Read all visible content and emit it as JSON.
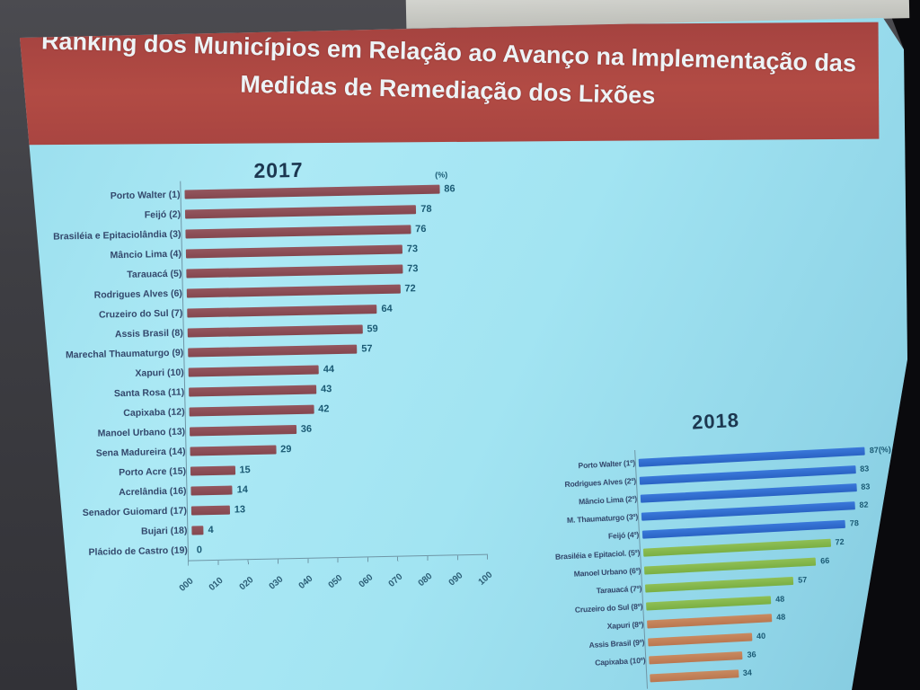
{
  "banner": {
    "title_line1": "Ranking dos Municípios em Relação ao Avanço na Implementação das",
    "title_line2": "Medidas de Remediação dos Lixões",
    "background": "#ad4641",
    "text_color": "#edf3f6"
  },
  "chart_data": [
    {
      "type": "bar",
      "orientation": "horizontal",
      "title": "2017",
      "unit_label": "(%)",
      "value_axis_range": [
        0,
        100
      ],
      "x_axis_ticks": [
        "000",
        "010",
        "020",
        "030",
        "040",
        "050",
        "060",
        "070",
        "080",
        "090",
        "100"
      ],
      "bar_color": "#8a4e57",
      "rows": [
        {
          "label": "Porto Walter (1)",
          "value": 86,
          "value_label": "86"
        },
        {
          "label": "Feijó (2)",
          "value": 78,
          "value_label": "78"
        },
        {
          "label": "Brasiléia e Epitaciolândia (3)",
          "value": 76,
          "value_label": "76"
        },
        {
          "label": "Mâncio Lima (4)",
          "value": 73,
          "value_label": "73"
        },
        {
          "label": "Tarauacá (5)",
          "value": 73,
          "value_label": "73"
        },
        {
          "label": "Rodrigues Alves (6)",
          "value": 72,
          "value_label": "72"
        },
        {
          "label": "Cruzeiro do Sul (7)",
          "value": 64,
          "value_label": "64"
        },
        {
          "label": "Assis Brasil (8)",
          "value": 59,
          "value_label": "59"
        },
        {
          "label": "Marechal Thaumaturgo (9)",
          "value": 57,
          "value_label": "57"
        },
        {
          "label": "Xapuri (10)",
          "value": 44,
          "value_label": "44"
        },
        {
          "label": "Santa Rosa (11)",
          "value": 43,
          "value_label": "43"
        },
        {
          "label": "Capixaba (12)",
          "value": 42,
          "value_label": "42"
        },
        {
          "label": "Manoel Urbano (13)",
          "value": 36,
          "value_label": "36"
        },
        {
          "label": "Sena Madureira (14)",
          "value": 29,
          "value_label": "29"
        },
        {
          "label": "Porto Acre (15)",
          "value": 15,
          "value_label": "15"
        },
        {
          "label": "Acrelândia (16)",
          "value": 14,
          "value_label": "14"
        },
        {
          "label": "Senador Guiomard (17)",
          "value": 13,
          "value_label": "13"
        },
        {
          "label": "Bujari (18)",
          "value": 4,
          "value_label": "4"
        },
        {
          "label": "Plácido de Castro (19)",
          "value": 0,
          "value_label": "0"
        }
      ]
    },
    {
      "type": "bar",
      "orientation": "horizontal",
      "title": "2018",
      "value_axis_range": [
        0,
        100
      ],
      "series_colors": {
        "blue": "#2e6fd2",
        "green": "#84b94e",
        "orange": "#c2805a"
      },
      "rows": [
        {
          "label": "Porto Walter (1º)",
          "value": 87,
          "value_label": "87(%)",
          "color": "blue"
        },
        {
          "label": "Rodrigues Alves (2º)",
          "value": 83,
          "value_label": "83",
          "color": "blue"
        },
        {
          "label": "Mâncio Lima (2º)",
          "value": 83,
          "value_label": "83",
          "color": "blue"
        },
        {
          "label": "M. Thaumaturgo (3º)",
          "value": 82,
          "value_label": "82",
          "color": "blue"
        },
        {
          "label": "Feijó (4º)",
          "value": 78,
          "value_label": "78",
          "color": "blue"
        },
        {
          "label": "Brasiléia e Epitaciol. (5º)",
          "value": 72,
          "value_label": "72",
          "color": "green"
        },
        {
          "label": "Manoel Urbano (6º)",
          "value": 66,
          "value_label": "66",
          "color": "green"
        },
        {
          "label": "Tarauacá (7º)",
          "value": 57,
          "value_label": "57",
          "color": "green"
        },
        {
          "label": "Cruzeiro do Sul (8º)",
          "value": 48,
          "value_label": "48",
          "color": "green"
        },
        {
          "label": "Xapuri (8º)",
          "value": 48,
          "value_label": "48",
          "color": "orange"
        },
        {
          "label": "Assis Brasil (9º)",
          "value": 40,
          "value_label": "40",
          "color": "orange"
        },
        {
          "label": "Capixaba (10º)",
          "value": 36,
          "value_label": "36",
          "color": "orange"
        },
        {
          "label": "",
          "value": 34,
          "value_label": "34",
          "color": "orange"
        }
      ]
    }
  ],
  "colors": {
    "slide_background": "#a2e2f0",
    "scene_background": "#404045",
    "bar_2017": "#8a4e57",
    "label_text": "#33486c",
    "value_text": "#1a5a74",
    "chart_title_text": "#1c3750"
  }
}
